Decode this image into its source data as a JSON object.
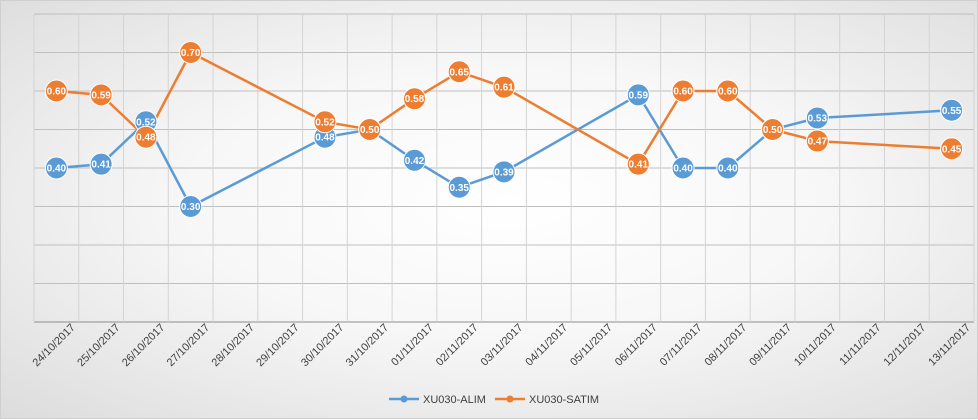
{
  "chart_data": {
    "type": "line",
    "title": "",
    "xlabel": "",
    "ylabel": "",
    "ylim": [
      0,
      0.8
    ],
    "grid": true,
    "legend_position": "bottom",
    "categories": [
      "24/10/2017",
      "25/10/2017",
      "26/10/2017",
      "27/10/2017",
      "28/10/2017",
      "29/10/2017",
      "30/10/2017",
      "31/10/2017",
      "01/11/2017",
      "02/11/2017",
      "03/11/2017",
      "04/11/2017",
      "05/11/2017",
      "06/11/2017",
      "07/11/2017",
      "08/11/2017",
      "09/11/2017",
      "10/11/2017",
      "11/11/2017",
      "12/11/2017",
      "13/11/2017"
    ],
    "series": [
      {
        "name": "XU030-ALIM",
        "color": "#5b9bd5",
        "points": [
          {
            "index": 0,
            "value": 0.4,
            "label": "0.40"
          },
          {
            "index": 1,
            "value": 0.41,
            "label": "0.41"
          },
          {
            "index": 2,
            "value": 0.52,
            "label": "0.52"
          },
          {
            "index": 3,
            "value": 0.3,
            "label": "0.30"
          },
          {
            "index": 6,
            "value": 0.48,
            "label": "0.48"
          },
          {
            "index": 7,
            "value": 0.5,
            "label": "0.50"
          },
          {
            "index": 8,
            "value": 0.42,
            "label": "0.42"
          },
          {
            "index": 9,
            "value": 0.35,
            "label": "0.35"
          },
          {
            "index": 10,
            "value": 0.39,
            "label": "0.39"
          },
          {
            "index": 13,
            "value": 0.59,
            "label": "0.59"
          },
          {
            "index": 14,
            "value": 0.4,
            "label": "0.40"
          },
          {
            "index": 15,
            "value": 0.4,
            "label": "0.40"
          },
          {
            "index": 16,
            "value": 0.5,
            "label": "0.50"
          },
          {
            "index": 17,
            "value": 0.53,
            "label": "0.53"
          },
          {
            "index": 20,
            "value": 0.55,
            "label": "0.55"
          }
        ]
      },
      {
        "name": "XU030-SATIM",
        "color": "#ed7d31",
        "points": [
          {
            "index": 0,
            "value": 0.6,
            "label": "0.60"
          },
          {
            "index": 1,
            "value": 0.59,
            "label": "0.59"
          },
          {
            "index": 2,
            "value": 0.48,
            "label": "0.48"
          },
          {
            "index": 3,
            "value": 0.7,
            "label": "0.70"
          },
          {
            "index": 6,
            "value": 0.52,
            "label": "0.52"
          },
          {
            "index": 7,
            "value": 0.5,
            "label": "0.50"
          },
          {
            "index": 8,
            "value": 0.58,
            "label": "0.58"
          },
          {
            "index": 9,
            "value": 0.65,
            "label": "0.65"
          },
          {
            "index": 10,
            "value": 0.61,
            "label": "0.61"
          },
          {
            "index": 13,
            "value": 0.41,
            "label": "0.41"
          },
          {
            "index": 14,
            "value": 0.6,
            "label": "0.60"
          },
          {
            "index": 15,
            "value": 0.6,
            "label": "0.60"
          },
          {
            "index": 16,
            "value": 0.5,
            "label": "0.50"
          },
          {
            "index": 17,
            "value": 0.47,
            "label": "0.47"
          },
          {
            "index": 20,
            "value": 0.45,
            "label": "0.45"
          }
        ]
      }
    ]
  }
}
